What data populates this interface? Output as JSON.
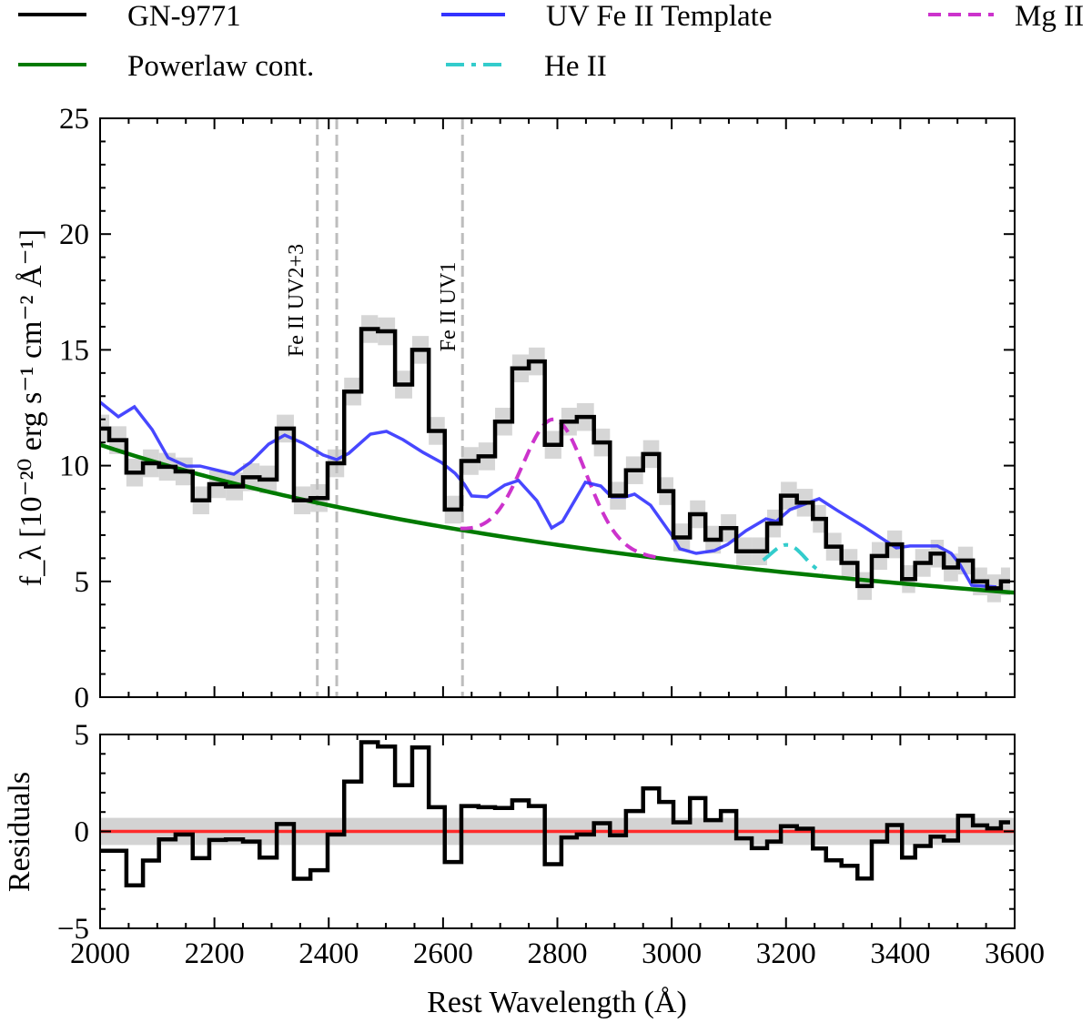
{
  "chart_data": [
    {
      "type": "line",
      "panel": "spectrum",
      "xlabel": "Rest Wavelength (Å)",
      "ylabel": "f_λ [10⁻²⁰ erg s⁻¹ cm⁻² Å⁻¹]",
      "xlim": [
        2000,
        3600
      ],
      "ylim": [
        0,
        25
      ],
      "xticks": [
        2000,
        2200,
        2400,
        2600,
        2800,
        3000,
        3200,
        3400,
        3600
      ],
      "yticks": [
        0,
        5,
        10,
        15,
        20,
        25
      ],
      "grid": false,
      "legend_placement": "top, outside",
      "legend": [
        {
          "label": "GN-9771",
          "color": "#000000",
          "style": "solid"
        },
        {
          "label": "UV Fe II Template",
          "color": "#3333ff",
          "style": "solid"
        },
        {
          "label": "Mg II",
          "color": "#cc33cc",
          "style": "dashed"
        },
        {
          "label": "Powerlaw cont.",
          "color": "#007a00",
          "style": "solid"
        },
        {
          "label": "He II",
          "color": "#33cccc",
          "style": "dashdot"
        }
      ],
      "observed": {
        "name": "GN-9771",
        "drawstyle": "steps",
        "bin_edges": [
          2000,
          2016,
          2046,
          2075,
          2103,
          2132,
          2162,
          2191,
          2220,
          2250,
          2279,
          2309,
          2339,
          2368,
          2398,
          2427,
          2457,
          2486,
          2516,
          2546,
          2575,
          2603,
          2632,
          2662,
          2691,
          2721,
          2750,
          2778,
          2807,
          2834,
          2864,
          2892,
          2920,
          2950,
          2978,
          3003,
          3032,
          3059,
          3086,
          3113,
          3140,
          3167,
          3191,
          3219,
          3247,
          3270,
          3297,
          3325,
          3350,
          3377,
          3403,
          3426,
          3453,
          3476,
          3501,
          3527,
          3552,
          3576,
          3592
        ],
        "flux": [
          11.6,
          11.1,
          9.7,
          10.1,
          9.95,
          9.75,
          8.5,
          9.2,
          9.1,
          9.5,
          9.4,
          11.6,
          8.5,
          8.6,
          10.1,
          13.2,
          15.9,
          15.8,
          13.5,
          15.0,
          11.5,
          8.1,
          10.2,
          10.4,
          11.9,
          14.2,
          14.5,
          10.9,
          11.9,
          12.1,
          11.0,
          8.7,
          9.8,
          10.5,
          8.9,
          6.9,
          7.9,
          6.8,
          7.3,
          6.3,
          6.3,
          7.5,
          8.7,
          8.4,
          7.7,
          6.5,
          5.8,
          4.8,
          6.1,
          6.6,
          5.1,
          5.8,
          6.2,
          5.6,
          5.9,
          5.0,
          4.7,
          5.0
        ],
        "flux_err": 0.6,
        "color": "#000000"
      },
      "fe_template": {
        "name": "UV Fe II Template",
        "x": [
          2000,
          2032,
          2060,
          2091,
          2119,
          2151,
          2175,
          2234,
          2263,
          2295,
          2323,
          2355,
          2390,
          2414,
          2435,
          2473,
          2501,
          2530,
          2565,
          2597,
          2621,
          2637,
          2650,
          2677,
          2708,
          2732,
          2764,
          2790,
          2809,
          2849,
          2876,
          2895,
          2919,
          2935,
          2963,
          3000,
          3014,
          3043,
          3075,
          3098,
          3130,
          3165,
          3183,
          3207,
          3258,
          3290,
          3337,
          3393,
          3417,
          3465,
          3489,
          3504,
          3525,
          3568
        ],
        "y": [
          12.74,
          12.11,
          12.54,
          11.56,
          10.34,
          9.98,
          9.98,
          9.63,
          10.14,
          10.93,
          11.32,
          10.97,
          10.46,
          10.26,
          10.53,
          11.36,
          11.48,
          11.12,
          10.57,
          10.14,
          9.67,
          9.2,
          8.69,
          8.65,
          9.16,
          9.36,
          8.49,
          7.31,
          7.59,
          9.28,
          9.12,
          8.65,
          8.65,
          8.77,
          8.29,
          7.0,
          6.41,
          6.21,
          6.33,
          6.6,
          7.19,
          7.7,
          7.59,
          8.1,
          8.57,
          8.06,
          7.35,
          6.45,
          6.53,
          6.53,
          6.21,
          5.74,
          4.83,
          4.76
        ],
        "color": "#3333ff"
      },
      "powerlaw": {
        "name": "Powerlaw cont.",
        "norm_at_2000": 10.9,
        "index": -1.5,
        "range": [
          2000,
          3600
        ],
        "color": "#007a00"
      },
      "mg2": {
        "name": "Mg II",
        "center": 2795,
        "amplitude": 5.4,
        "sigma": 55,
        "range": [
          2630,
          2980
        ],
        "color": "#cc33cc"
      },
      "he2": {
        "name": "He II",
        "center": 3203,
        "amplitude": 1.2,
        "sigma": 30,
        "range": [
          3160,
          3265
        ],
        "color": "#33cccc"
      },
      "line_markers": [
        {
          "label": "Fe II UV2+3",
          "x": [
            2380,
            2414
          ]
        },
        {
          "label": "Fe II UV1",
          "x": [
            2634
          ]
        }
      ]
    },
    {
      "type": "line",
      "panel": "residuals",
      "ylabel": "Residuals",
      "xlabel": "Rest Wavelength (Å)",
      "xlim": [
        2000,
        3600
      ],
      "ylim": [
        -5,
        5
      ],
      "yticks": [
        -5,
        0,
        5
      ],
      "ytick_labels": [
        "−5",
        "0",
        "5"
      ],
      "zero_line_color": "#ff2a2a",
      "residual_err": 0.7,
      "residuals": [
        -1.0,
        -1.0,
        -2.78,
        -1.5,
        -0.41,
        -0.16,
        -1.38,
        -0.44,
        -0.41,
        -0.52,
        -1.35,
        0.38,
        -2.44,
        -2.0,
        -0.16,
        2.57,
        4.6,
        4.38,
        2.38,
        4.33,
        1.25,
        -1.58,
        1.31,
        1.25,
        1.21,
        1.6,
        1.31,
        -1.69,
        -0.31,
        -0.16,
        0.42,
        -0.2,
        1.05,
        2.22,
        1.52,
        0.47,
        1.72,
        0.58,
        1.05,
        -0.36,
        -0.86,
        -0.52,
        0.27,
        0.14,
        -0.88,
        -1.49,
        -1.77,
        -2.43,
        -0.52,
        0.33,
        -1.35,
        -0.75,
        -0.27,
        -0.47,
        0.81,
        0.31,
        0.16,
        0.47
      ]
    }
  ]
}
